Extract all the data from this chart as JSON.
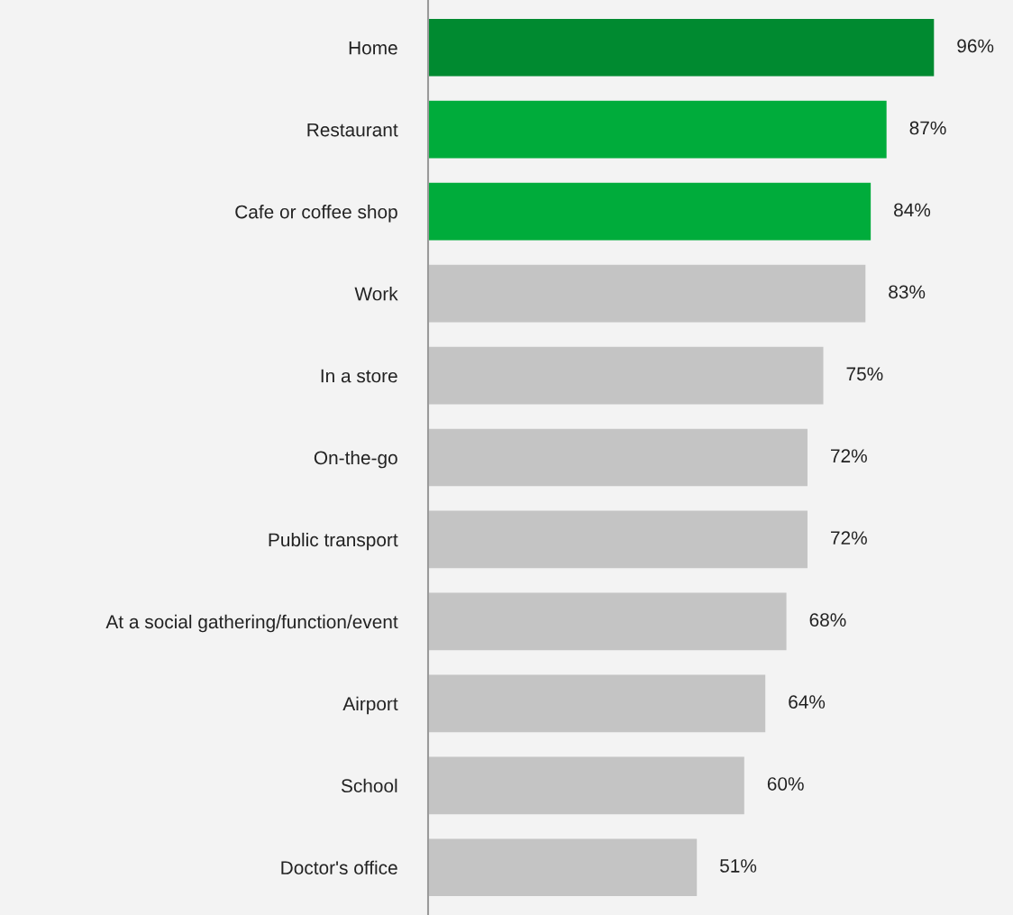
{
  "chart_data": {
    "type": "bar",
    "orientation": "horizontal",
    "categories": [
      "Home",
      "Restaurant",
      "Cafe or coffee shop",
      "Work",
      "In a store",
      "On-the-go",
      "Public transport",
      "At a social gathering/function/event",
      "Airport",
      "School",
      "Doctor's office"
    ],
    "values": [
      96,
      87,
      84,
      83,
      75,
      72,
      72,
      68,
      64,
      60,
      51
    ],
    "colors": [
      "#008a30",
      "#00ac3b",
      "#00ac3b",
      "#c4c4c4",
      "#c4c4c4",
      "#c4c4c4",
      "#c4c4c4",
      "#c4c4c4",
      "#c4c4c4",
      "#c4c4c4",
      "#c4c4c4"
    ],
    "value_labels": [
      "96%",
      "87%",
      "84%",
      "83%",
      "75%",
      "72%",
      "72%",
      "68%",
      "64%",
      "60%",
      "51%"
    ],
    "xlim": [
      0,
      111
    ],
    "tick_labels": "y",
    "grid": false,
    "legend": false
  }
}
